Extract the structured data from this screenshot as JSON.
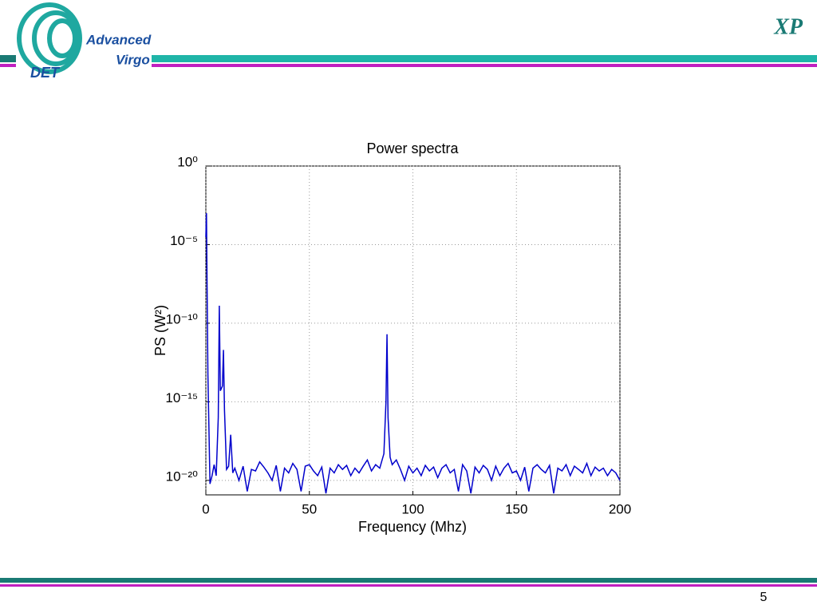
{
  "header": {
    "logo_top": "Advanced",
    "logo_bottom": "Virgo",
    "logo_tag": "DET",
    "section": "XP"
  },
  "footer": {
    "page": "5"
  },
  "chart_data": {
    "type": "line",
    "title": "Power spectra",
    "x_label": "Frequency (Mhz)",
    "y_label": "PS (W²)",
    "log_y": true,
    "grid": true,
    "color": "#0000cc",
    "xlim": [
      0,
      200
    ],
    "xticks": [
      0,
      50,
      100,
      150,
      200
    ],
    "ylim": [
      1.2e-21,
      1
    ],
    "yticks": [
      {
        "value": 1,
        "label": "10⁰"
      },
      {
        "value": 1e-05,
        "label": "10⁻⁵"
      },
      {
        "value": 1e-10,
        "label": "10⁻¹⁰"
      },
      {
        "value": 1e-15,
        "label": "10⁻¹⁵"
      },
      {
        "value": 1e-20,
        "label": "10⁻²⁰"
      }
    ],
    "x": [
      0,
      0.3,
      0.6,
      1,
      2,
      3,
      4,
      5,
      6,
      6.5,
      7,
      8,
      8.5,
      9,
      10,
      11,
      12,
      13,
      14,
      16,
      18,
      20,
      22,
      24,
      26,
      28,
      30,
      32,
      34,
      36,
      38,
      40,
      42,
      44,
      46,
      48,
      50,
      52,
      54,
      56,
      58,
      60,
      62,
      64,
      66,
      68,
      70,
      72,
      74,
      76,
      78,
      80,
      82,
      84,
      86,
      87,
      87.5,
      88,
      89,
      90,
      92,
      94,
      96,
      98,
      100,
      102,
      104,
      106,
      108,
      110,
      112,
      114,
      116,
      118,
      120,
      122,
      124,
      126,
      128,
      130,
      132,
      134,
      136,
      138,
      140,
      142,
      144,
      146,
      148,
      150,
      152,
      154,
      156,
      158,
      160,
      162,
      164,
      166,
      168,
      170,
      172,
      174,
      176,
      178,
      180,
      182,
      184,
      186,
      188,
      190,
      192,
      194,
      196,
      198,
      200
    ],
    "values": [
      3e-05,
      0.001,
      2e-08,
      5e-14,
      6e-21,
      2e-20,
      1e-19,
      2e-20,
      1e-16,
      1.3e-09,
      5e-15,
      1e-14,
      2e-12,
      3e-16,
      5e-20,
      8e-20,
      8e-18,
      3e-20,
      6e-20,
      1e-20,
      8e-20,
      2e-21,
      5e-20,
      4e-20,
      1.5e-19,
      7e-20,
      3e-20,
      1e-20,
      9e-20,
      2e-21,
      6e-20,
      3e-20,
      1.2e-19,
      5e-20,
      2e-21,
      8e-20,
      1e-19,
      4e-20,
      2e-20,
      7e-20,
      1.5e-21,
      6e-20,
      3e-20,
      1e-19,
      5e-20,
      9e-20,
      2e-20,
      6e-20,
      3e-20,
      8e-20,
      2e-19,
      4e-20,
      1e-19,
      6e-20,
      5e-19,
      1e-15,
      2e-11,
      1e-16,
      3e-19,
      1e-19,
      2e-19,
      5e-20,
      1e-20,
      8e-20,
      3e-20,
      6e-20,
      2e-20,
      9e-20,
      4e-20,
      7e-20,
      1.5e-20,
      6e-20,
      1e-19,
      3e-20,
      5e-20,
      2e-21,
      1e-19,
      4e-20,
      1.5e-21,
      7e-20,
      3e-20,
      9e-20,
      5e-20,
      1e-20,
      8e-20,
      2e-20,
      6e-20,
      1.2e-19,
      3e-20,
      4e-20,
      1e-20,
      7e-20,
      2e-21,
      6e-20,
      1e-19,
      5e-20,
      3e-20,
      9e-20,
      1.5e-21,
      6e-20,
      4e-20,
      1e-19,
      2e-20,
      8e-20,
      5e-20,
      3e-20,
      1.2e-19,
      2e-20,
      7e-20,
      4e-20,
      6e-20,
      2e-20,
      5e-20,
      3e-20,
      1e-20
    ]
  }
}
